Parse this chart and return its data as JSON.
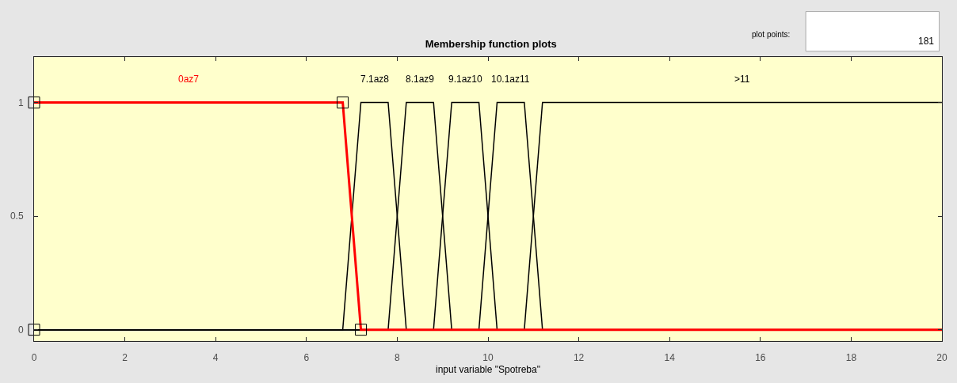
{
  "chart_data": {
    "type": "line",
    "title": "Membership function plots",
    "xlabel": "input variable \"Spotreba\"",
    "annotations": [
      "plot points:",
      "181"
    ],
    "xlim": [
      0,
      20
    ],
    "xticks": [
      0,
      2,
      4,
      6,
      8,
      10,
      12,
      14,
      16,
      18,
      20
    ],
    "ylim": [
      -0.05,
      1.2
    ],
    "yticks": [
      0,
      0.5,
      1
    ],
    "grid": false,
    "series": [
      {
        "name": "7.1az8",
        "color": "#000000",
        "x": [
          0,
          6.8,
          7.2,
          7.8,
          8.2,
          20
        ],
        "values": [
          0,
          0,
          1,
          1,
          0,
          0
        ]
      },
      {
        "name": "8.1az9",
        "color": "#000000",
        "x": [
          0,
          7.8,
          8.2,
          8.8,
          9.2,
          20
        ],
        "values": [
          0,
          0,
          1,
          1,
          0,
          0
        ]
      },
      {
        "name": "9.1az10",
        "color": "#000000",
        "x": [
          0,
          8.8,
          9.2,
          9.8,
          10.2,
          20
        ],
        "values": [
          0,
          0,
          1,
          1,
          0,
          0
        ]
      },
      {
        "name": "10.1az11",
        "color": "#000000",
        "x": [
          0,
          9.8,
          10.2,
          10.8,
          11.2,
          20
        ],
        "values": [
          0,
          0,
          1,
          1,
          0,
          0
        ]
      },
      {
        "name": ">11",
        "color": "#000000",
        "x": [
          0,
          10.8,
          11.2,
          20
        ],
        "values": [
          0,
          0,
          1,
          1
        ]
      },
      {
        "name": "0az7",
        "color": "#ff0000",
        "x": [
          0,
          6.8,
          7.2,
          20
        ],
        "values": [
          1,
          1,
          0,
          0
        ]
      },
      {
        "type": "scatter",
        "color": "#000000",
        "marker": "square",
        "x": [
          0,
          6.8,
          7.2,
          0
        ],
        "values": [
          1,
          1,
          0,
          0
        ]
      }
    ]
  }
}
